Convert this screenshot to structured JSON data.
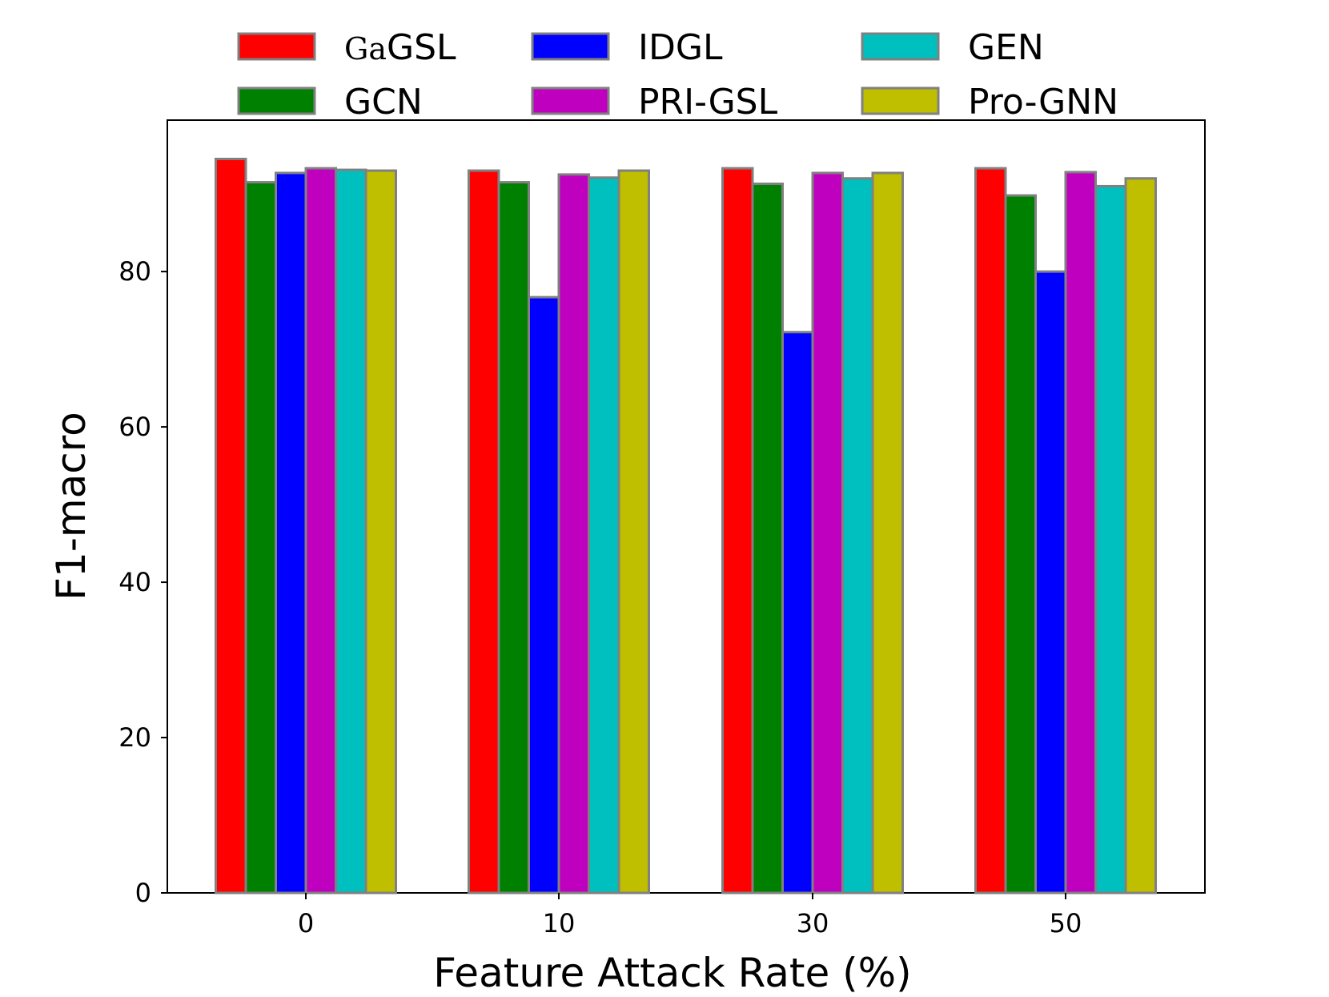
{
  "chart_data": {
    "type": "bar",
    "title": "",
    "xlabel": "Feature Attack Rate (%)",
    "ylabel": "F1-macro",
    "ylim": [
      0,
      99.5
    ],
    "yticks": [
      0,
      20,
      40,
      60,
      80
    ],
    "categories": [
      "0",
      "10",
      "30",
      "50"
    ],
    "grid": false,
    "legend_position": "top",
    "series": [
      {
        "name": "GaGSL",
        "name_prefix": "Ga",
        "name_suffix": "GSL",
        "color": "#ff0000",
        "values": [
          94.5,
          93.0,
          93.3,
          93.3
        ]
      },
      {
        "name": "GCN",
        "color": "#008000",
        "values": [
          91.5,
          91.5,
          91.3,
          89.8
        ]
      },
      {
        "name": "IDGL",
        "color": "#0000ff",
        "values": [
          92.7,
          76.7,
          72.2,
          80.0
        ]
      },
      {
        "name": "PRI-GSL",
        "color": "#bf00bf",
        "values": [
          93.3,
          92.5,
          92.7,
          92.8
        ]
      },
      {
        "name": "GEN",
        "color": "#00bfbf",
        "values": [
          93.1,
          92.1,
          92.0,
          91.0
        ]
      },
      {
        "name": "Pro-GNN",
        "color": "#bfbf00",
        "values": [
          93.0,
          93.0,
          92.7,
          92.0
        ]
      }
    ],
    "bar_edge_color": "#808080"
  }
}
